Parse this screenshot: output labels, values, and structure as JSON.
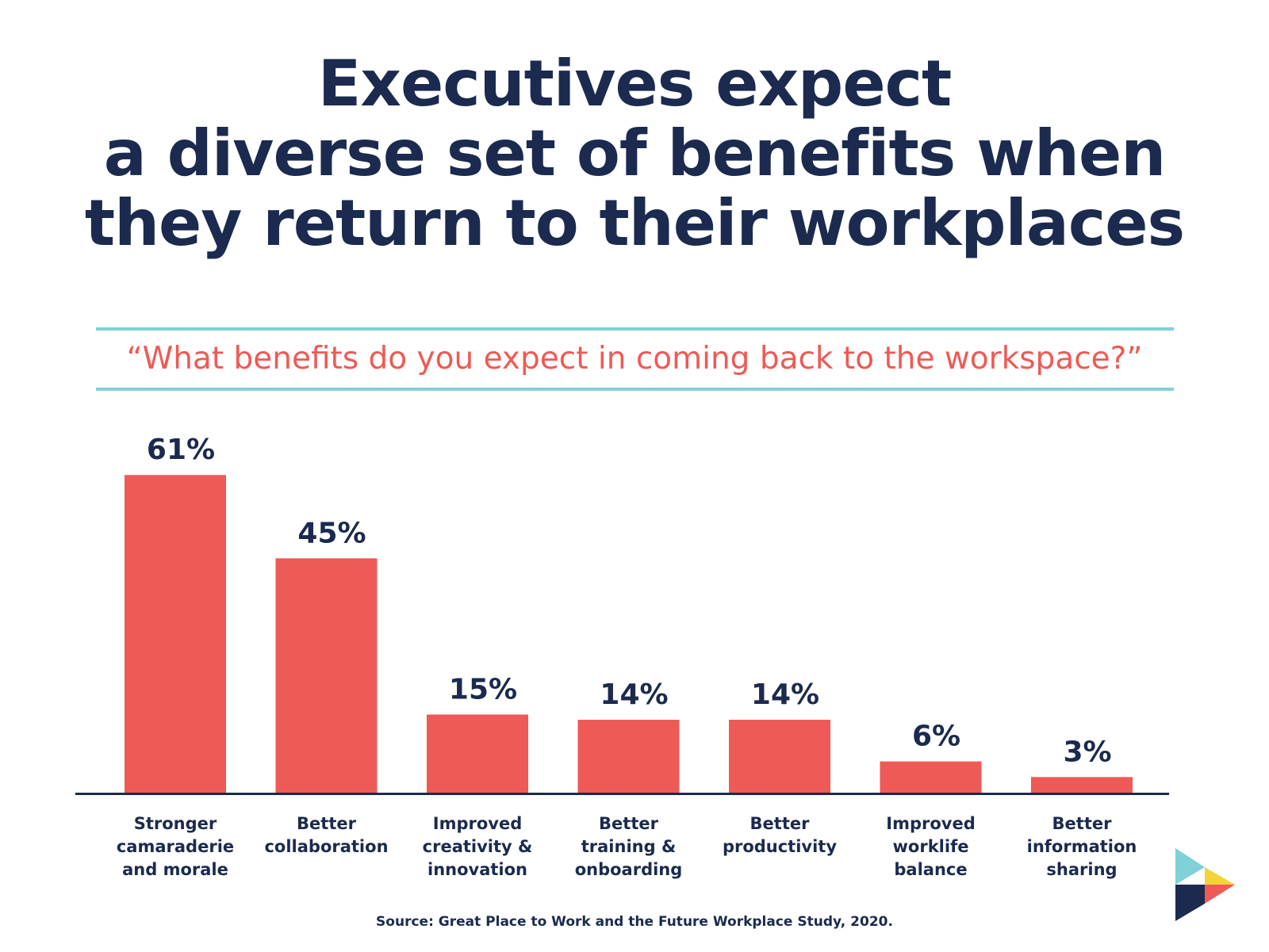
{
  "title_lines": [
    "Executives expect",
    "a diverse set of benefits when",
    "they return to their workplaces"
  ],
  "question": "“What benefits do you expect in coming back to the workspace?”",
  "source": "Source: Great Place to Work and the Future Workplace Study, 2020.",
  "colors": {
    "bar": "#ee5a55",
    "text": "#1b2a4e",
    "rule": "#7fd1d7",
    "axis": "#1b2a4e"
  },
  "chart_data": {
    "type": "bar",
    "categories": [
      [
        "Stronger",
        "camaraderie",
        "and morale"
      ],
      [
        "Better",
        "collaboration"
      ],
      [
        "Improved",
        "creativity &",
        "innovation"
      ],
      [
        "Better",
        "training &",
        "onboarding"
      ],
      [
        "Better",
        "productivity"
      ],
      [
        "Improved",
        "worklife",
        "balance"
      ],
      [
        "Better",
        "information",
        "sharing"
      ]
    ],
    "values": [
      61,
      45,
      15,
      14,
      14,
      6,
      3
    ],
    "value_labels": [
      "61%",
      "45%",
      "15%",
      "14%",
      "14%",
      "6%",
      "3%"
    ],
    "grid": false,
    "legend": "none"
  }
}
